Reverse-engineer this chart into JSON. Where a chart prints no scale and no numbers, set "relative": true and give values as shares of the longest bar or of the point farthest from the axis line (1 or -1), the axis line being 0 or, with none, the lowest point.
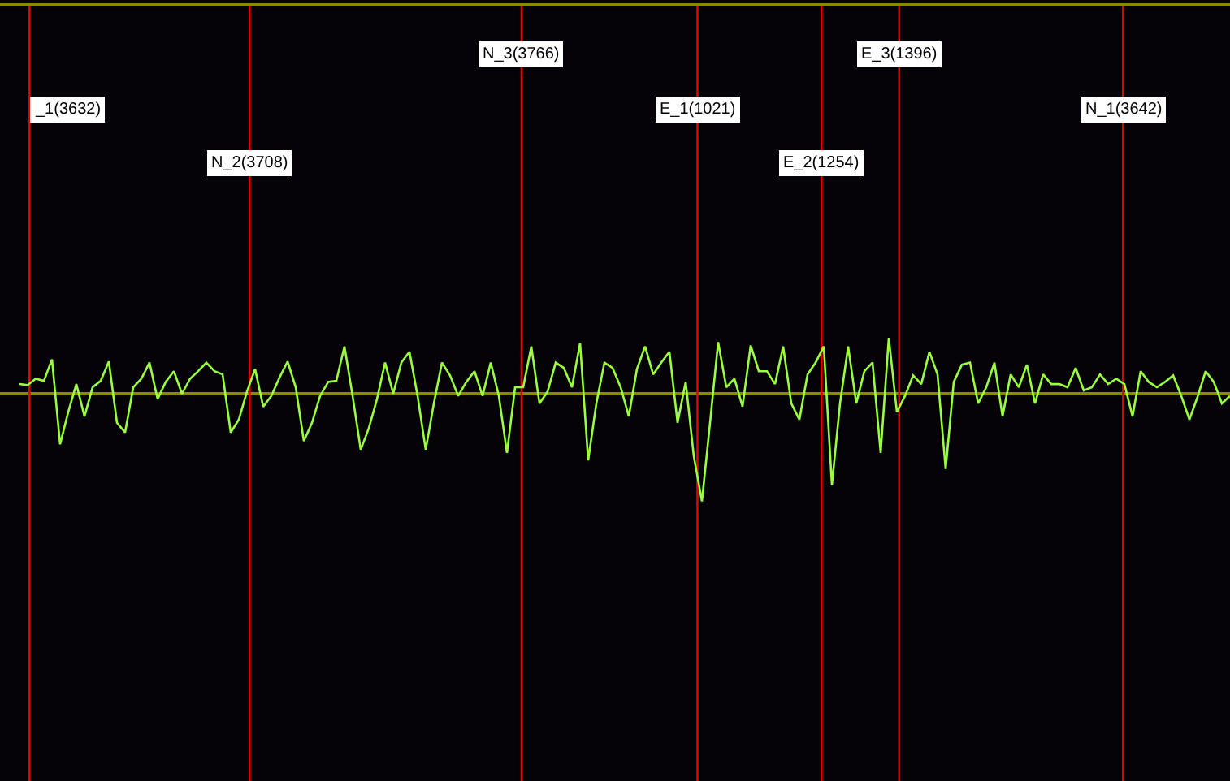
{
  "chart_data": {
    "type": "line",
    "relative": true,
    "grid": false,
    "marker": "none",
    "line_style": "solid",
    "tick_labels": false,
    "categories": [
      null,
      null,
      null,
      null,
      null,
      null,
      null,
      null,
      null,
      null,
      null,
      null,
      null,
      null,
      null,
      null,
      null,
      null,
      null,
      null,
      null,
      null,
      null,
      null,
      null,
      null,
      null,
      null,
      null,
      null,
      null,
      null,
      null,
      null,
      null,
      null,
      null,
      null,
      null,
      null,
      null,
      null,
      null,
      null,
      null,
      null,
      null,
      null,
      null,
      null,
      null,
      null,
      null,
      null,
      null,
      null,
      null,
      null,
      null,
      null,
      null,
      null,
      null,
      null,
      null,
      null,
      null,
      null,
      null,
      null,
      null,
      null,
      null,
      null,
      null,
      null,
      null,
      null,
      null,
      null,
      null,
      null,
      null,
      null,
      null,
      null,
      null,
      null,
      null,
      null,
      null,
      null,
      null,
      null,
      null,
      null,
      null,
      null,
      null,
      null,
      null,
      null,
      null,
      null,
      null,
      null,
      null,
      null,
      null,
      null,
      null,
      null,
      null,
      null,
      null,
      null,
      null,
      null,
      null,
      null,
      null,
      null,
      null,
      null,
      null,
      null,
      null,
      null,
      null,
      null,
      null,
      null,
      null,
      null,
      null,
      null,
      null,
      null,
      null,
      null,
      null,
      null,
      null,
      null,
      null,
      null,
      null,
      null,
      null,
      null
    ],
    "series": [
      {
        "color": "#9aff3c",
        "values": [
          0.09,
          0.08,
          0.14,
          0.12,
          0.32,
          -0.47,
          -0.17,
          0.09,
          -0.21,
          0.06,
          0.12,
          0.3,
          -0.27,
          -0.36,
          0.06,
          0.14,
          0.29,
          -0.05,
          0.11,
          0.21,
          0,
          0.14,
          0.21,
          0.29,
          0.21,
          0.18,
          -0.36,
          -0.24,
          0.02,
          0.23,
          -0.12,
          -0.02,
          0.15,
          0.3,
          0.06,
          -0.44,
          -0.27,
          -0.02,
          0.11,
          0.12,
          0.44,
          -0.02,
          -0.52,
          -0.32,
          -0.05,
          0.29,
          0,
          0.29,
          0.39,
          -0.02,
          -0.52,
          -0.09,
          0.29,
          0.17,
          -0.02,
          0.11,
          0.21,
          -0.02,
          0.29,
          -0.02,
          -0.55,
          0.06,
          0.06,
          0.44,
          -0.09,
          0.02,
          0.29,
          0.24,
          0.06,
          0.47,
          -0.62,
          -0.09,
          0.29,
          0.24,
          0.06,
          -0.21,
          0.23,
          0.44,
          0.18,
          0.29,
          0.39,
          -0.27,
          0.11,
          -0.58,
          -1,
          -0.27,
          0.48,
          0.06,
          0.14,
          -0.12,
          0.45,
          0.21,
          0.21,
          0.09,
          0.44,
          -0.09,
          -0.24,
          0.18,
          0.29,
          0.44,
          -0.85,
          -0.09,
          0.44,
          -0.09,
          0.21,
          0.29,
          -0.55,
          0.52,
          -0.17,
          -0.02,
          0.17,
          0.09,
          0.39,
          0.18,
          -0.7,
          0.11,
          0.27,
          0.29,
          -0.09,
          0.06,
          0.29,
          -0.21,
          0.18,
          0.06,
          0.27,
          -0.09,
          0.18,
          0.09,
          0.09,
          0.06,
          0.24,
          0.03,
          0.06,
          0.18,
          0.09,
          0.14,
          0.09,
          -0.21,
          0.21,
          0.11,
          0.06,
          0.11,
          0.17,
          -0.02,
          -0.24,
          -0.03,
          0.21,
          0.11,
          -0.09,
          -0.02
        ]
      }
    ],
    "ref_lines": [
      {
        "axis": "y",
        "value": 0,
        "color": "#8a8a00"
      }
    ],
    "annotations": [
      "_1(3632)",
      "N_2(3708)",
      "N_3(3766)",
      "E_1(1021)",
      "E_2(1254)",
      "E_3(1396)",
      "N_1(3642)"
    ]
  }
}
